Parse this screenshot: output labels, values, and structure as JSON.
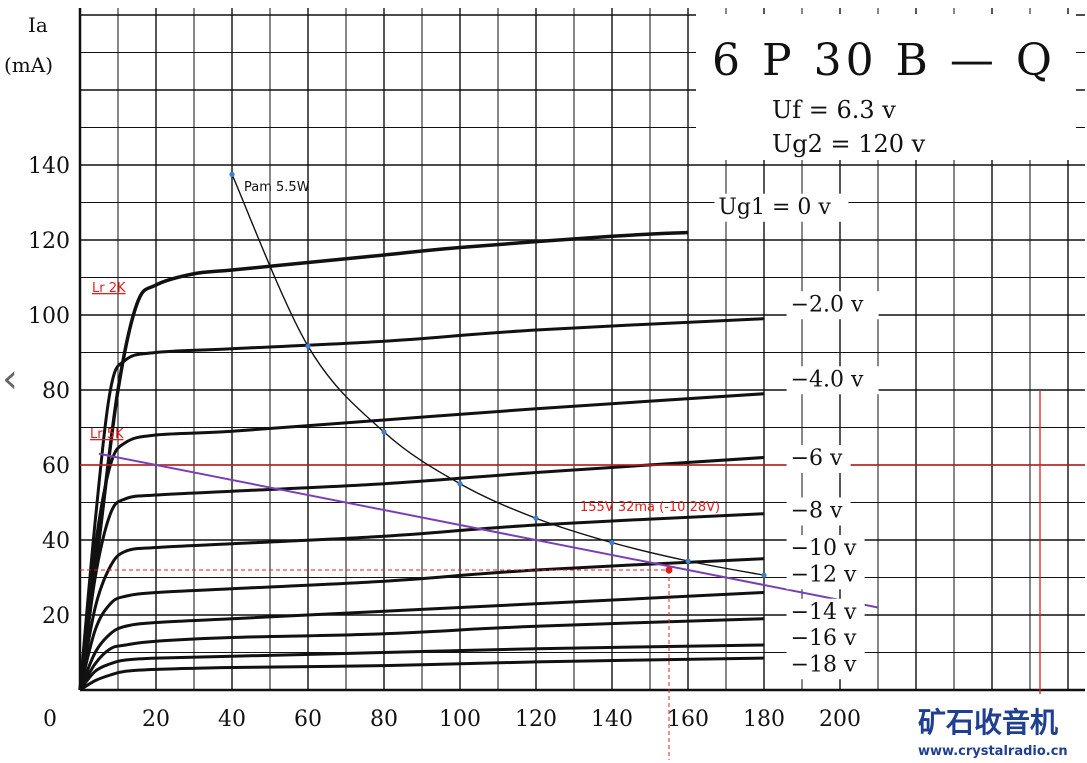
{
  "chart_data": {
    "type": "line",
    "title": "6 P 30 B — Q",
    "conditions": [
      "Uf = 6.3 v",
      "Ug2 = 120 v"
    ],
    "ylabel_symbol": "Ia",
    "ylabel_unit": "(mA)",
    "xlim": [
      0,
      210
    ],
    "ylim": [
      0,
      150
    ],
    "x_ticks": [
      0,
      20,
      40,
      60,
      80,
      100,
      120,
      140,
      160,
      180,
      200
    ],
    "x_tick_labels": [
      "0",
      "20",
      "40",
      "60",
      "80",
      "100",
      "120",
      "140",
      "160",
      "180",
      "200"
    ],
    "y_ticks": [
      20,
      40,
      60,
      80,
      100,
      120,
      140
    ],
    "y_tick_labels": [
      "20",
      "40",
      "60",
      "80",
      "100",
      "120",
      "140"
    ],
    "grid": true,
    "series": [
      {
        "name": "Ug1 = 0 v",
        "x": [
          0,
          5,
          10,
          15,
          20,
          30,
          40,
          60,
          80,
          100,
          140,
          160
        ],
        "y": [
          0,
          40,
          80,
          103,
          108,
          111,
          112,
          114,
          116,
          118,
          121,
          122
        ]
      },
      {
        "name": "−2.0 v",
        "x": [
          0,
          4,
          8,
          12,
          20,
          40,
          80,
          120,
          180
        ],
        "y": [
          0,
          45,
          80,
          88,
          90,
          91,
          93,
          96,
          99
        ]
      },
      {
        "name": "−4.0 v",
        "x": [
          0,
          4,
          8,
          12,
          20,
          40,
          80,
          120,
          180
        ],
        "y": [
          0,
          38,
          60,
          66,
          68,
          69,
          72,
          75,
          79
        ]
      },
      {
        "name": "−6 v",
        "x": [
          0,
          4,
          8,
          12,
          20,
          40,
          80,
          120,
          180
        ],
        "y": [
          0,
          30,
          47,
          51,
          52,
          53,
          55,
          58,
          62
        ]
      },
      {
        "name": "−8 v",
        "x": [
          0,
          4,
          8,
          12,
          20,
          40,
          80,
          120,
          180
        ],
        "y": [
          0,
          22,
          33,
          37,
          38,
          39,
          41,
          44,
          47
        ]
      },
      {
        "name": "−10 v",
        "x": [
          0,
          4,
          8,
          12,
          20,
          40,
          80,
          120,
          180
        ],
        "y": [
          0,
          16,
          23,
          25,
          26,
          27,
          29,
          32,
          35
        ]
      },
      {
        "name": "−12 v",
        "x": [
          0,
          4,
          8,
          12,
          20,
          40,
          80,
          120,
          180
        ],
        "y": [
          0,
          10,
          15,
          17,
          18,
          19,
          21,
          23,
          26
        ]
      },
      {
        "name": "−14 v",
        "x": [
          0,
          4,
          8,
          12,
          20,
          40,
          80,
          120,
          180
        ],
        "y": [
          0,
          7,
          11,
          12,
          13,
          14,
          15,
          17,
          19
        ]
      },
      {
        "name": "−16 v",
        "x": [
          0,
          4,
          8,
          12,
          20,
          40,
          80,
          120,
          180
        ],
        "y": [
          0,
          5,
          7,
          8,
          8.5,
          9,
          10,
          11,
          12
        ]
      },
      {
        "name": "−18 v",
        "x": [
          0,
          4,
          8,
          12,
          20,
          40,
          80,
          120,
          180
        ],
        "y": [
          0,
          2.5,
          4,
          5,
          5.5,
          6,
          6.5,
          7.5,
          8.5
        ]
      }
    ],
    "curve_label_positions": [
      {
        "label": "Ug1 = 0 v",
        "x": 168,
        "y": 127
      },
      {
        "label": "−2.0 v",
        "x": 187,
        "y": 101
      },
      {
        "label": "−4.0 v",
        "x": 187,
        "y": 81
      },
      {
        "label": "−6 v",
        "x": 187,
        "y": 60
      },
      {
        "label": "−8 v",
        "x": 187,
        "y": 46
      },
      {
        "label": "−10 v",
        "x": 187,
        "y": 36
      },
      {
        "label": "−12 v",
        "x": 187,
        "y": 29
      },
      {
        "label": "−14 v",
        "x": 187,
        "y": 19
      },
      {
        "label": "−16 v",
        "x": 187,
        "y": 12
      },
      {
        "label": "−18 v",
        "x": 187,
        "y": 5
      }
    ],
    "power_curve": {
      "label": "Pam 5.5W",
      "x": [
        40,
        60,
        80,
        100,
        120,
        140,
        160,
        180
      ],
      "y": [
        137.5,
        91.7,
        68.8,
        55,
        45.8,
        39.3,
        34.4,
        30.6
      ]
    },
    "load_line": {
      "label": "Lr 5K",
      "x": [
        5,
        210
      ],
      "y": [
        63,
        22
      ]
    },
    "load_label_2k": "Lr 2K",
    "reference_line_y": 60,
    "reference_line_x": 172,
    "operating_point": {
      "label": "155V 32ma (-10.28V)",
      "x": 155,
      "y": 32
    }
  },
  "watermark": {
    "name": "矿石收音机",
    "url": "www.crystalradio.cn"
  },
  "colors": {
    "ink": "#111111",
    "annotation_red": "#e02020",
    "load_line": "#7b3fb5",
    "point_blue": "#3a7fd0",
    "brand": "#1f3f8f"
  }
}
